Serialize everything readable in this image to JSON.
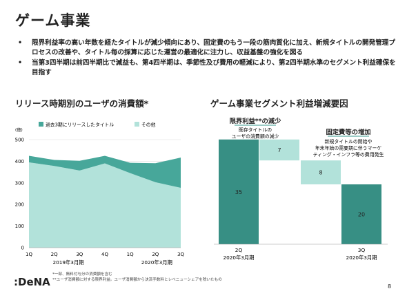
{
  "page": {
    "title": "ゲーム事業",
    "bullets": [
      "限界利益率の高い年数を経たタイトルが減少傾向にあり、固定費のもう一段の筋肉質化に加え、新規タイトルの開発管理プロセスの改善や、タイトル毎の採算に応じた運営の最適化に注力し、収益基盤の強化を図る",
      "当第3四半期は前四半期比で減益も、第4四半期は、季節性及び費用の軽減により、第2四半期水準のセグメント利益確保を目指す"
    ],
    "bullet_marker": "•",
    "left_section_title": "リリース時期別のユーザの消費額*",
    "right_section_title": "ゲーム事業セグメント利益増減要因",
    "footnotes": [
      "*一部、無料付与分の消費額を含む",
      "**ユーザ消費額に対する限界利益。ユーザ消費額から決済手数料とレベニューシェアを除いたもの"
    ],
    "logo": ":DeNA",
    "page_number": "8"
  },
  "colors": {
    "dark_teal": "#47A79A",
    "light_teal": "#B2E2DA",
    "waterfall_teal": "#378F84",
    "grid": "#dddddd",
    "annot_teal": "#38998C"
  },
  "chart_data": [
    {
      "type": "area",
      "stacked": true,
      "unit_label": "(億)",
      "categories": [
        "1Q",
        "2Q",
        "3Q",
        "4Q",
        "1Q",
        "2Q",
        "3Q"
      ],
      "group_labels": [
        "2019年3月期",
        "2020年3月期"
      ],
      "series": [
        {
          "name": "その他",
          "values": [
            395,
            378,
            357,
            390,
            345,
            303,
            277
          ],
          "color": "#B2E2DA"
        },
        {
          "name": "過去3期にリリースしたタイトル",
          "values": [
            30,
            28,
            45,
            35,
            48,
            88,
            140
          ],
          "color": "#47A79A"
        }
      ],
      "ylim": [
        0,
        500
      ],
      "yticks": [
        "0",
        "100",
        "200",
        "300",
        "400",
        "500"
      ],
      "grid": true,
      "legend_position": "top"
    },
    {
      "type": "bar",
      "subtype": "waterfall",
      "unit_label": "(億円)",
      "bars": [
        {
          "label": "2Q",
          "value": 35,
          "value_label": "35",
          "kind": "total"
        },
        {
          "label": "",
          "value": -7,
          "value_label": "7",
          "kind": "delta"
        },
        {
          "label": "",
          "value": -8,
          "value_label": "8",
          "kind": "delta"
        },
        {
          "label": "3Q",
          "value": 20,
          "value_label": "20",
          "kind": "total"
        }
      ],
      "sublabels": [
        "2020年3月期",
        "2020年3月期"
      ],
      "annotations": [
        {
          "title": "限界利益**の減少",
          "text": [
            "既存タイトルの",
            "ユーザの消費額の減少"
          ]
        },
        {
          "title": "固定費等の増加",
          "text": [
            "新規タイトルの開始や",
            "年末年始の需要期に伴うマーケ",
            "ティング・インフラ等の費用発生"
          ]
        }
      ]
    }
  ]
}
